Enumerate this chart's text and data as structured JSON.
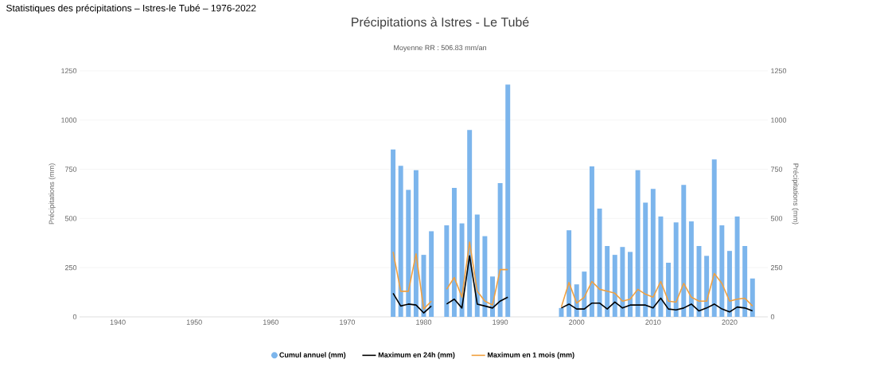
{
  "chart_data": {
    "type": "bar",
    "title": "Précipitations à Istres - Le Tubé",
    "subtitle": "Moyenne RR : 506.83 mm/an",
    "annotations": [
      "Statistiques des précipitations – Istres-le Tubé – 1976-2022"
    ],
    "ylabel": "Précipitations (mm)",
    "y2label": "Précipitations (mm)",
    "x": [
      1976,
      1977,
      1978,
      1979,
      1980,
      1981,
      1982,
      1983,
      1984,
      1985,
      1986,
      1987,
      1988,
      1989,
      1990,
      1991,
      1992,
      1993,
      1994,
      1995,
      1996,
      1997,
      1998,
      1999,
      2000,
      2001,
      2002,
      2003,
      2004,
      2005,
      2006,
      2007,
      2008,
      2009,
      2010,
      2011,
      2012,
      2013,
      2014,
      2015,
      2016,
      2017,
      2018,
      2019,
      2020,
      2021,
      2022,
      2023
    ],
    "series": [
      {
        "name": "Cumul annuel (mm)",
        "type": "bar",
        "color": "#7cb5ec",
        "values": [
          850,
          768,
          645,
          745,
          315,
          435,
          null,
          465,
          655,
          475,
          950,
          520,
          410,
          205,
          680,
          1180,
          null,
          null,
          null,
          null,
          null,
          null,
          45,
          440,
          165,
          230,
          765,
          550,
          360,
          315,
          355,
          330,
          745,
          580,
          650,
          510,
          275,
          480,
          670,
          485,
          360,
          310,
          800,
          465,
          335,
          510,
          360,
          195
        ]
      },
      {
        "name": "Maximum en 24h (mm)",
        "type": "line",
        "color": "#000000",
        "values": [
          120,
          55,
          65,
          60,
          20,
          55,
          null,
          65,
          90,
          45,
          310,
          65,
          55,
          45,
          80,
          100,
          null,
          null,
          null,
          null,
          null,
          null,
          45,
          65,
          40,
          40,
          70,
          70,
          40,
          75,
          45,
          60,
          60,
          60,
          45,
          95,
          40,
          35,
          45,
          65,
          30,
          45,
          65,
          40,
          25,
          50,
          45,
          30
        ]
      },
      {
        "name": "Maximum en 1 mois (mm)",
        "type": "line",
        "color": "#f0a040",
        "values": [
          330,
          130,
          130,
          320,
          40,
          80,
          null,
          140,
          200,
          100,
          380,
          130,
          80,
          60,
          240,
          240,
          null,
          null,
          null,
          null,
          null,
          null,
          50,
          175,
          70,
          100,
          180,
          140,
          130,
          120,
          80,
          90,
          140,
          115,
          100,
          180,
          80,
          75,
          170,
          100,
          80,
          80,
          220,
          170,
          80,
          90,
          95,
          55
        ]
      }
    ],
    "xlim": [
      1935,
      2025
    ],
    "xticks": [
      1940,
      1950,
      1960,
      1970,
      1980,
      1990,
      2000,
      2010,
      2020
    ],
    "ylim": [
      0,
      1250
    ],
    "yticks": [
      0,
      250,
      500,
      750,
      1000,
      1250
    ],
    "y2lim": [
      0,
      1250
    ],
    "y2ticks": [
      0,
      250,
      500,
      750,
      1000,
      1250
    ],
    "grid": "y",
    "legend": "bottom"
  }
}
